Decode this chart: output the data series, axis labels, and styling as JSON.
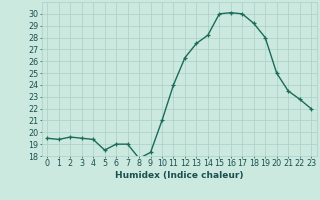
{
  "x": [
    0,
    1,
    2,
    3,
    4,
    5,
    6,
    7,
    8,
    9,
    10,
    11,
    12,
    13,
    14,
    15,
    16,
    17,
    18,
    19,
    20,
    21,
    22,
    23
  ],
  "y": [
    19.5,
    19.4,
    19.6,
    19.5,
    19.4,
    18.5,
    19.0,
    19.0,
    17.8,
    18.3,
    21.0,
    24.0,
    26.3,
    27.5,
    28.2,
    30.0,
    30.1,
    30.0,
    29.2,
    28.0,
    25.0,
    23.5,
    22.8,
    22.0
  ],
  "xlabel": "Humidex (Indice chaleur)",
  "ylim": [
    18,
    31
  ],
  "xlim": [
    -0.5,
    23.5
  ],
  "yticks": [
    18,
    19,
    20,
    21,
    22,
    23,
    24,
    25,
    26,
    27,
    28,
    29,
    30
  ],
  "xticks": [
    0,
    1,
    2,
    3,
    4,
    5,
    6,
    7,
    8,
    9,
    10,
    11,
    12,
    13,
    14,
    15,
    16,
    17,
    18,
    19,
    20,
    21,
    22,
    23
  ],
  "line_color": "#1a6b58",
  "marker_color": "#1a6b58",
  "bg_color": "#cce9e0",
  "grid_color": "#aacfc5",
  "tick_color": "#1a5050",
  "xlabel_fontsize": 6.5,
  "tick_fontsize": 5.8,
  "marker_size": 2.5,
  "line_width": 1.0
}
